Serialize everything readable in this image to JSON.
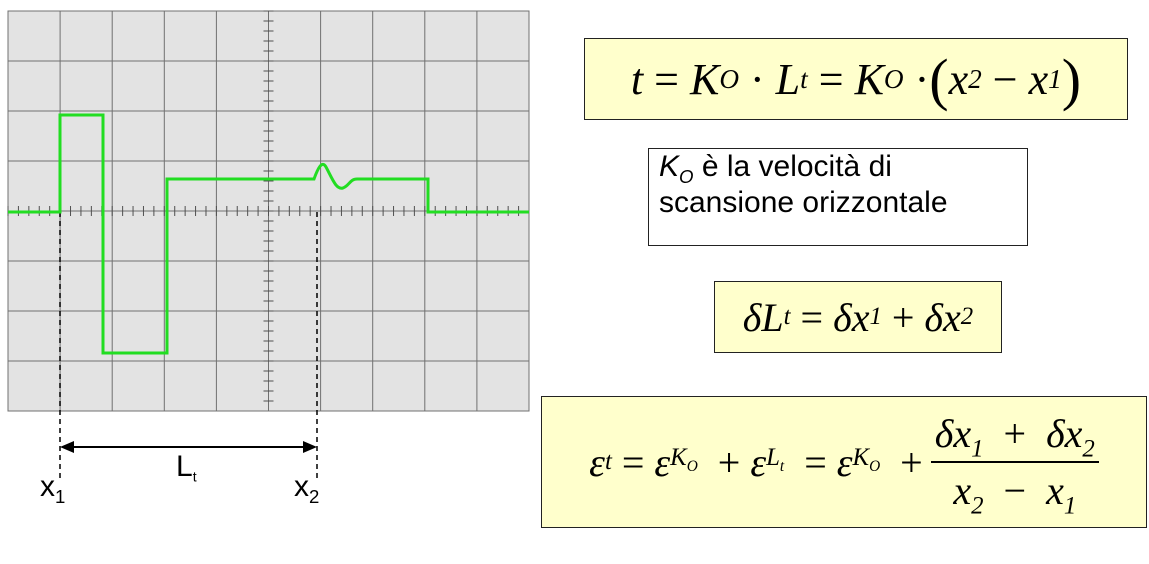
{
  "scope": {
    "axis_x_left": "x",
    "axis_x_left_sub": "1",
    "axis_x_right": "x",
    "axis_x_right_sub": "2",
    "interval_label": "L",
    "interval_label_sub": "t",
    "trace_color": "#22dd22",
    "grid_background": "#e3e3e3",
    "grid_line_color": "#707070"
  },
  "formulas": {
    "time": {
      "t": "t",
      "K": "K",
      "K_sub": "O",
      "L": "L",
      "L_sub": "t",
      "x2": "x",
      "x2_sub": "2",
      "x1": "x",
      "x1_sub": "1"
    },
    "note_line1_rest": " è la velocità di",
    "note_line2": "scansione orizzontale",
    "delta": {
      "dL": "δL",
      "dL_sub": "t",
      "dx1": "δx",
      "dx1_sub": "1",
      "dx2": "δx",
      "dx2_sub": "2"
    },
    "epsilon": {
      "eps": "ε",
      "t_sub": "t",
      "K": "K",
      "K_sub": "O",
      "L": "L",
      "L_sub": "t",
      "num_dx1": "δx",
      "num_1": "1",
      "num_dx2": "δx",
      "num_2": "2",
      "den_x2": "x",
      "den_2": "2",
      "den_x1": "x",
      "den_1": "1"
    },
    "box_color": "#ffffcc"
  }
}
